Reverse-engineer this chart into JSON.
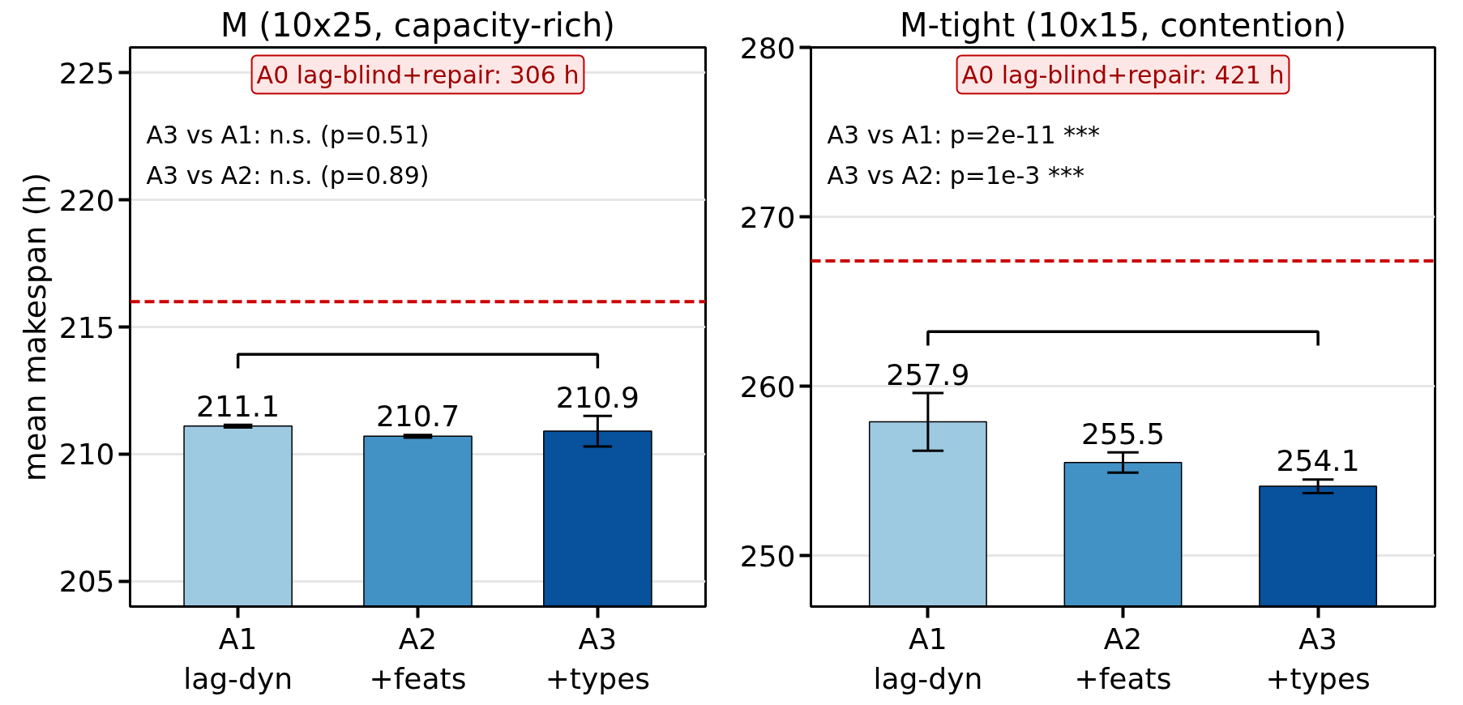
{
  "chart_data": [
    {
      "type": "bar",
      "title": "M (10x25, capacity-rich)",
      "ylabel": "mean makespan (h)",
      "categories": [
        "A1\nlag-dyn",
        "A2\n+feats",
        "A3\n+types"
      ],
      "values": [
        211.1,
        210.7,
        210.9
      ],
      "colors": [
        "#9ecae1",
        "#4292c6",
        "#08519c"
      ],
      "errors": [
        0.05,
        0.05,
        0.6
      ],
      "ylim": [
        204,
        226
      ],
      "yticks": [
        205,
        210,
        215,
        220,
        225
      ],
      "grid": "y",
      "data_labels": true,
      "ref_lines": [
        {
          "axis": "y",
          "value": 216,
          "color": "#cc0000",
          "line_style": "dashed"
        }
      ],
      "annotations": [
        "A0 lag-blind+repair: 306 h",
        "A3 vs A1: n.s. (p=0.51)",
        "A3 vs A2: n.s. (p=0.89)"
      ]
    },
    {
      "type": "bar",
      "title": "M-tight (10x15, contention)",
      "categories": [
        "A1\nlag-dyn",
        "A2\n+feats",
        "A3\n+types"
      ],
      "values": [
        257.9,
        255.5,
        254.1
      ],
      "colors": [
        "#9ecae1",
        "#4292c6",
        "#08519c"
      ],
      "errors": [
        1.7,
        0.6,
        0.4
      ],
      "ylim": [
        247,
        280
      ],
      "yticks": [
        250,
        260,
        270,
        280
      ],
      "grid": "y",
      "data_labels": true,
      "ref_lines": [
        {
          "axis": "y",
          "value": 267.4,
          "color": "#cc0000",
          "line_style": "dashed"
        }
      ],
      "annotations": [
        "A0 lag-blind+repair: 421 h",
        "A3 vs A1: p=2e-11 ***",
        "A3 vs A2: p=1e-3 ***"
      ]
    }
  ]
}
